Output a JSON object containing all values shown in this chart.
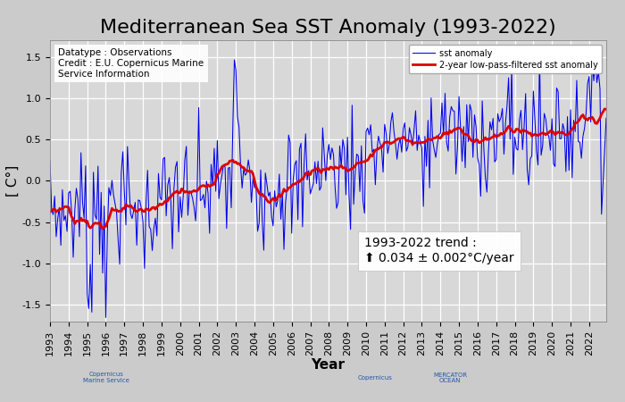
{
  "title": "Mediterranean Sea SST Anomaly (1993-2022)",
  "xlabel": "Year",
  "ylabel": "[ C°]",
  "ylim": [
    -1.7,
    1.7
  ],
  "xlim_start": 1993.0,
  "xlim_end": 2022.92,
  "background_color": "#cbcbcb",
  "plot_bg_color": "#d8d8d8",
  "blue_color": "#0000ee",
  "red_color": "#dd0000",
  "legend_label_blue": "sst anomaly",
  "legend_label_red": "2-year low-pass-filtered sst anomaly",
  "annotation_text": "1993-2022 trend :\n⬆ 0.034 ± 0.002°C/year",
  "datatype_text": "Datatype : Observations\nCredit : E.U. Copernicus Marine\nService Information",
  "trend_slope": 0.034,
  "yticks": [
    -1.5,
    -1.0,
    -0.5,
    0.0,
    0.5,
    1.0,
    1.5
  ],
  "title_fontsize": 16,
  "axis_label_fontsize": 11,
  "tick_fontsize": 8,
  "annotation_fontsize": 10
}
